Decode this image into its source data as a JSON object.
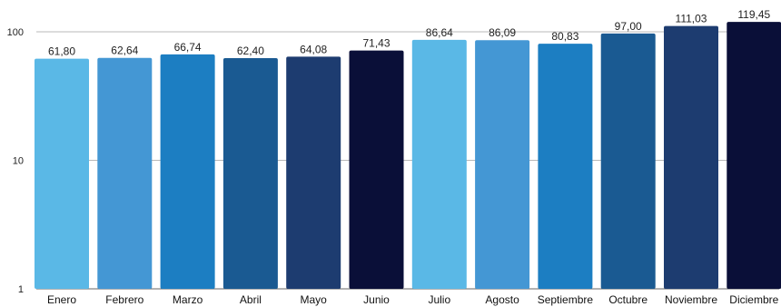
{
  "chart_data": {
    "type": "bar",
    "yscale": "log",
    "ylim": [
      1,
      130
    ],
    "yticks": [
      1,
      10,
      100
    ],
    "ytick_labels": [
      "1",
      "10",
      "100"
    ],
    "grid": true,
    "title": "",
    "xlabel": "",
    "ylabel": "",
    "categories": [
      "Enero",
      "Febrero",
      "Marzo",
      "Abril",
      "Mayo",
      "Junio",
      "Julio",
      "Agosto",
      "Septiembre",
      "Octubre",
      "Noviembre",
      "Diciembre"
    ],
    "values": [
      61.8,
      62.64,
      66.74,
      62.4,
      64.08,
      71.43,
      86.64,
      86.09,
      80.83,
      97.0,
      111.03,
      119.45
    ],
    "value_labels": [
      "61,80",
      "62,64",
      "66,74",
      "62,40",
      "64,08",
      "71,43",
      "86,64",
      "86,09",
      "80,83",
      "97,00",
      "111,03",
      "119,45"
    ],
    "colors": [
      "#5ab8e6",
      "#4497d4",
      "#1c7ec2",
      "#1a5a92",
      "#1d3c70",
      "#0a0f38",
      "#5ab8e6",
      "#4497d4",
      "#1c7ec2",
      "#1a5a92",
      "#1d3c70",
      "#0a0f38"
    ]
  }
}
